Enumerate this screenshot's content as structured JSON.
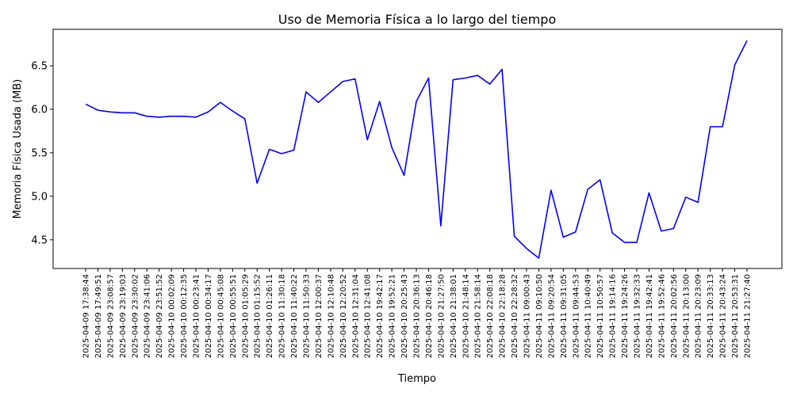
{
  "chart_data": {
    "type": "line",
    "title": "Uso de Memoria Física a lo largo del tiempo",
    "xlabel": "Tiempo",
    "ylabel": "Memoria Física Usada (MB)",
    "ylim": [
      4.17,
      6.92
    ],
    "yticks": [
      4.5,
      5.0,
      5.5,
      6.0,
      6.5
    ],
    "ytick_labels": [
      "4.5",
      "5.0",
      "5.5",
      "6.0",
      "6.5"
    ],
    "grid": false,
    "categories": [
      "2025-04-09 17:38:44",
      "2025-04-09 17:49:51",
      "2025-04-09 23:08:57",
      "2025-04-09 23:19:03",
      "2025-04-09 23:30:02",
      "2025-04-09 23:41:06",
      "2025-04-09 23:51:52",
      "2025-04-10 00:02:09",
      "2025-04-10 00:12:35",
      "2025-04-10 00:23:41",
      "2025-04-10 00:34:17",
      "2025-04-10 00:45:08",
      "2025-04-10 00:55:51",
      "2025-04-10 01:05:29",
      "2025-04-10 01:15:52",
      "2025-04-10 01:26:11",
      "2025-04-10 11:30:18",
      "2025-04-10 11:40:22",
      "2025-04-10 11:50:33",
      "2025-04-10 12:00:37",
      "2025-04-10 12:10:48",
      "2025-04-10 12:20:52",
      "2025-04-10 12:31:04",
      "2025-04-10 12:41:08",
      "2025-04-10 19:42:17",
      "2025-04-10 19:52:21",
      "2025-04-10 20:25:43",
      "2025-04-10 20:36:13",
      "2025-04-10 20:46:18",
      "2025-04-10 21:27:50",
      "2025-04-10 21:38:01",
      "2025-04-10 21:48:14",
      "2025-04-10 21:58:14",
      "2025-04-10 22:08:18",
      "2025-04-10 22:18:28",
      "2025-04-10 22:28:32",
      "2025-04-11 09:00:43",
      "2025-04-11 09:10:50",
      "2025-04-11 09:20:54",
      "2025-04-11 09:31:05",
      "2025-04-11 09:44:53",
      "2025-04-11 10:40:49",
      "2025-04-11 10:50:57",
      "2025-04-11 19:14:16",
      "2025-04-11 19:24:26",
      "2025-04-11 19:32:33",
      "2025-04-11 19:42:41",
      "2025-04-11 19:52:46",
      "2025-04-11 20:02:56",
      "2025-04-11 20:13:00",
      "2025-04-11 20:23:09",
      "2025-04-11 20:33:13",
      "2025-04-11 20:43:24",
      "2025-04-11 20:53:31",
      "2025-04-11 21:27:40"
    ],
    "series": [
      {
        "color": "#0000ff",
        "values": [
          6.06,
          5.99,
          5.97,
          5.96,
          5.96,
          5.92,
          5.91,
          5.92,
          5.92,
          5.91,
          5.97,
          6.08,
          5.98,
          5.89,
          5.15,
          5.54,
          5.49,
          5.53,
          6.2,
          6.08,
          6.2,
          6.32,
          6.35,
          5.65,
          6.09,
          5.56,
          5.24,
          6.09,
          6.36,
          4.66,
          6.34,
          6.36,
          6.39,
          6.29,
          6.46,
          4.54,
          4.4,
          4.29,
          5.07,
          4.53,
          4.59,
          5.08,
          5.19,
          4.58,
          4.47,
          4.47,
          5.04,
          4.6,
          4.63,
          4.99,
          4.93,
          5.8,
          5.8,
          6.51,
          6.79
        ]
      }
    ]
  }
}
